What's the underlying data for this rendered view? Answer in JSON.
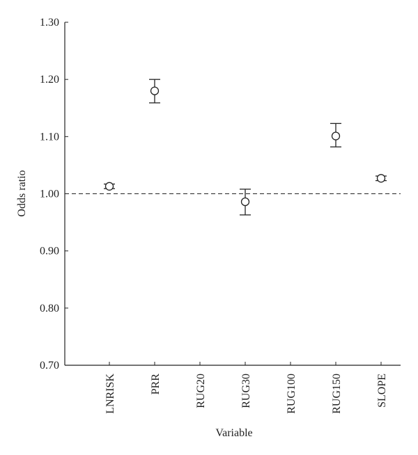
{
  "chart_data": {
    "type": "errorbar",
    "y_label": "Odds ratio",
    "x_label": "Variable",
    "categories": [
      "LNRISK",
      "PRR",
      "RUG20",
      "RUG30",
      "RUG100",
      "RUG150",
      "SLOPE"
    ],
    "values": [
      1.013,
      1.18,
      null,
      0.986,
      null,
      1.101,
      1.027
    ],
    "lower": [
      1.009,
      1.159,
      null,
      0.963,
      null,
      1.082,
      1.023
    ],
    "upper": [
      1.017,
      1.2,
      null,
      1.008,
      null,
      1.123,
      1.031
    ],
    "color": "#222222",
    "ylim": [
      0.7,
      1.3
    ],
    "yticks": [
      {
        "value": 0.7,
        "label": "0.70"
      },
      {
        "value": 0.8,
        "label": "0.80"
      },
      {
        "value": 0.9,
        "label": "0.90"
      },
      {
        "value": 1.0,
        "label": "1.00"
      },
      {
        "value": 1.1,
        "label": "1.10"
      },
      {
        "value": 1.2,
        "label": "1.20"
      },
      {
        "value": 1.3,
        "label": "1.30"
      }
    ],
    "reference_line": 1.0
  }
}
